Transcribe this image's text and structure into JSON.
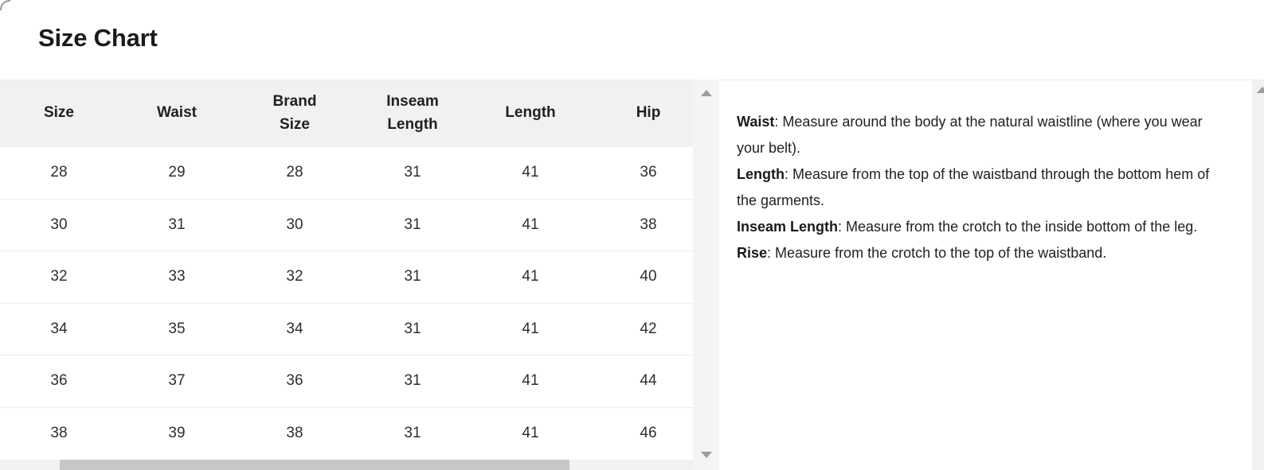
{
  "title": "Size Chart",
  "table": {
    "columns": [
      "Size",
      "Waist",
      "Brand Size",
      "Inseam Length",
      "Length",
      "Hip"
    ],
    "rows": [
      [
        "28",
        "29",
        "28",
        "31",
        "41",
        "36"
      ],
      [
        "30",
        "31",
        "30",
        "31",
        "41",
        "38"
      ],
      [
        "32",
        "33",
        "32",
        "31",
        "41",
        "40"
      ],
      [
        "34",
        "35",
        "34",
        "31",
        "41",
        "42"
      ],
      [
        "36",
        "37",
        "36",
        "31",
        "41",
        "44"
      ],
      [
        "38",
        "39",
        "38",
        "31",
        "41",
        "46"
      ]
    ]
  },
  "notes": [
    {
      "label": "Waist",
      "text": ": Measure around the body at the natural waistline (where you wear your belt)."
    },
    {
      "label": "Length",
      "text": ": Measure from the top of the waistband through the bottom hem of the garments."
    },
    {
      "label": "Inseam Length",
      "text": ": Measure from the crotch to the inside bottom of the leg."
    },
    {
      "label": "Rise",
      "text": ": Measure from the crotch to the top of the waistband."
    }
  ],
  "colors": {
    "header_bg": "#f1f1f1",
    "row_separator": "#ececec",
    "scrollbar_track": "#f4f4f4",
    "scrollbar_thumb": "#c7c7c7",
    "scroll_arrow": "#9d9d9d",
    "title_text": "#1b1b1b",
    "body_text": "#212121"
  }
}
